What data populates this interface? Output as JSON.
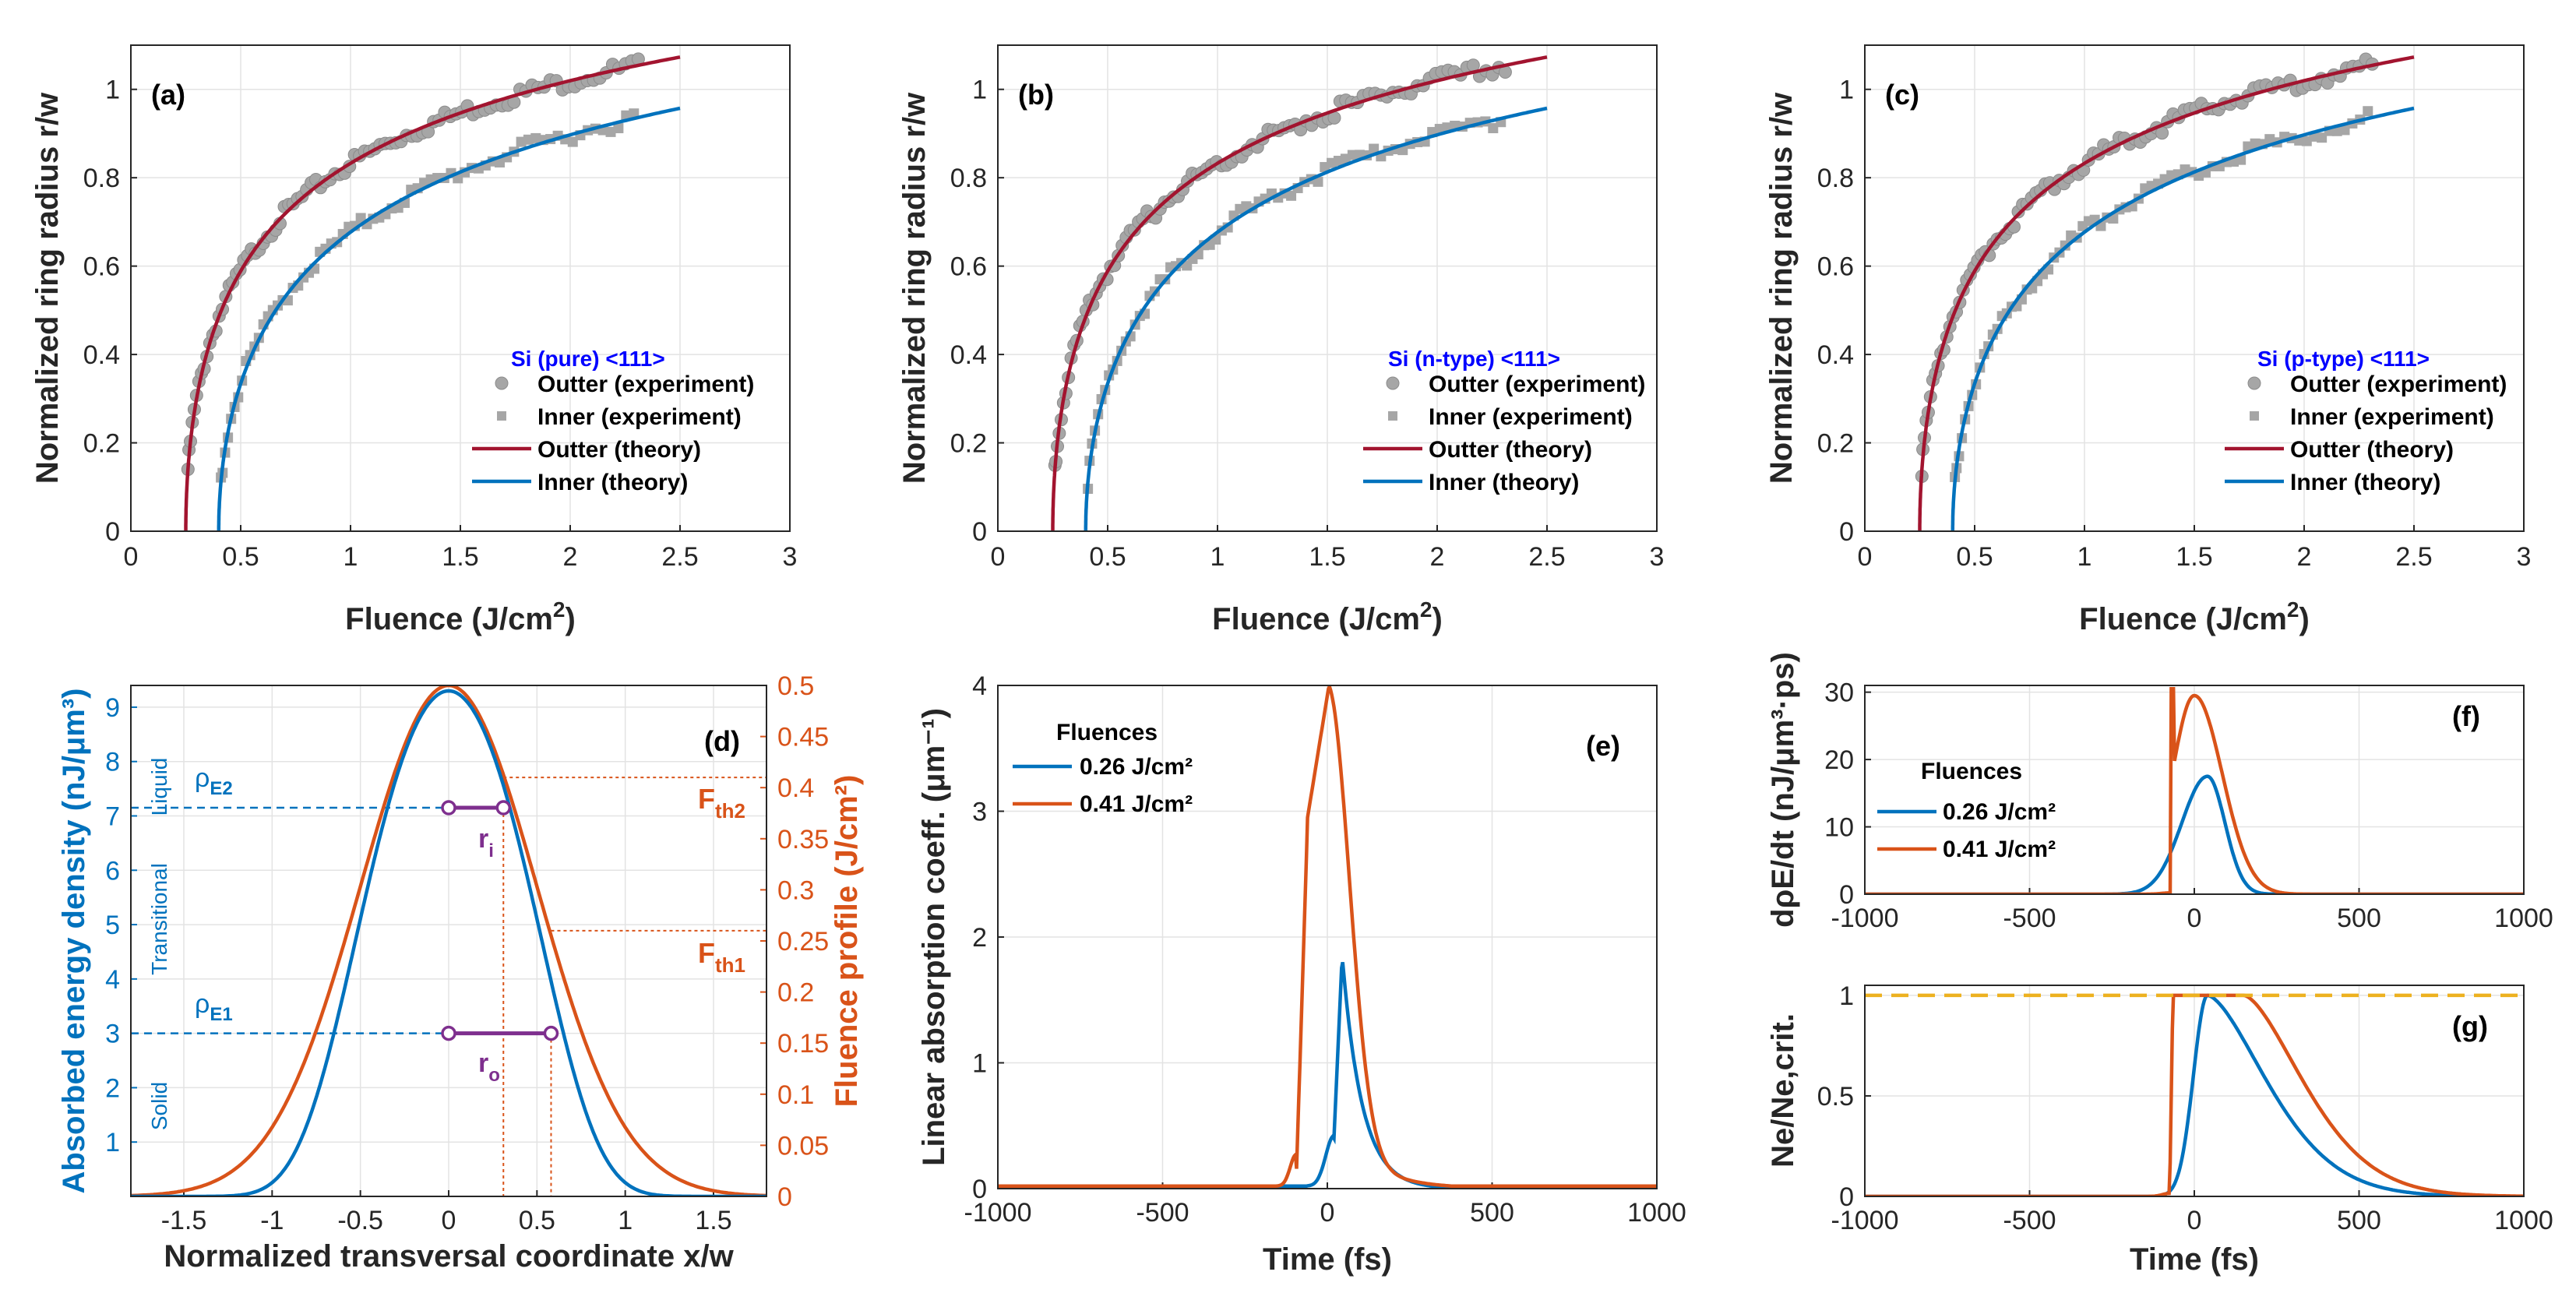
{
  "colors": {
    "outer": "#a2142f",
    "inner": "#0072bd",
    "orange": "#d95319",
    "marker": "#a6a6a6",
    "purple": "#7e2f8e",
    "yellow": "#edb120",
    "material": "#0000ff"
  },
  "chart_data": [
    {
      "id": "a",
      "type": "scatter",
      "panel_label": "(a)",
      "material": "Si (pure) <111>",
      "xlabel": "Fluence (J/cm",
      "xlabel_sup": "2",
      "xlabel_end": ")",
      "ylabel": "Normalized ring radius r/w",
      "xlim": [
        0,
        3
      ],
      "ylim": [
        0,
        1.1
      ],
      "xticks": [
        "0",
        "0.5",
        "1",
        "1.5",
        "2",
        "2.5",
        "3"
      ],
      "yticks": [
        "0",
        "0.2",
        "0.4",
        "0.6",
        "0.8",
        "1"
      ],
      "thresholds": {
        "outer": 0.25,
        "inner": 0.4
      },
      "legend": [
        "Outter (experiment)",
        "Inner (experiment)",
        "Outter (theory)",
        "Inner (theory)"
      ]
    },
    {
      "id": "b",
      "type": "scatter",
      "panel_label": "(b)",
      "material": "Si (n-type) <111>",
      "xlabel": "Fluence (J/cm",
      "xlabel_sup": "2",
      "xlabel_end": ")",
      "ylabel": "Normalized ring radius r/w",
      "xlim": [
        0,
        3
      ],
      "ylim": [
        0,
        1.1
      ],
      "xticks": [
        "0",
        "0.5",
        "1",
        "1.5",
        "2",
        "2.5",
        "3"
      ],
      "yticks": [
        "0",
        "0.2",
        "0.4",
        "0.6",
        "0.8",
        "1"
      ],
      "thresholds": {
        "outer": 0.25,
        "inner": 0.4
      },
      "legend": [
        "Outter (experiment)",
        "Inner (experiment)",
        "Outter (theory)",
        "Inner (theory)"
      ]
    },
    {
      "id": "c",
      "type": "scatter",
      "panel_label": "(c)",
      "material": "Si (p-type) <111>",
      "xlabel": "Fluence (J/cm",
      "xlabel_sup": "2",
      "xlabel_end": ")",
      "ylabel": "Normalized ring radius r/w",
      "xlim": [
        0,
        3
      ],
      "ylim": [
        0,
        1.1
      ],
      "xticks": [
        "0",
        "0.5",
        "1",
        "1.5",
        "2",
        "2.5",
        "3"
      ],
      "yticks": [
        "0",
        "0.2",
        "0.4",
        "0.6",
        "0.8",
        "1"
      ],
      "thresholds": {
        "outer": 0.25,
        "inner": 0.4
      },
      "legend": [
        "Outter (experiment)",
        "Inner (experiment)",
        "Outter (theory)",
        "Inner (theory)"
      ]
    },
    {
      "id": "d",
      "type": "line",
      "panel_label": "(d)",
      "xlabel": "Normalized transversal coordinate x/w",
      "ylabel_left": "Absorbed energy density (nJ/μm³)",
      "ylabel_right": "Fluence profile (J/cm²)",
      "xlim": [
        -1.8,
        1.8
      ],
      "ylim_left": [
        0,
        9.4
      ],
      "ylim_right": [
        0,
        0.5
      ],
      "xticks": [
        "-1.5",
        "-1",
        "-0.5",
        "0",
        "0.5",
        "1",
        "1.5"
      ],
      "yticks_left": [
        "1",
        "2",
        "3",
        "4",
        "5",
        "6",
        "7",
        "8",
        "9"
      ],
      "yticks_right": [
        "0",
        "0.05",
        "0.1",
        "0.15",
        "0.2",
        "0.25",
        "0.3",
        "0.35",
        "0.4",
        "0.45",
        "0.5"
      ],
      "peak_left": 9.3,
      "peak_right": 0.5,
      "rho_E2": 7.15,
      "rho_E1": 3.0,
      "F_th2": 0.41,
      "F_th1": 0.26,
      "r_i": 0.31,
      "r_o": 0.58,
      "labels": {
        "rho_E2": "E2",
        "rho_E1": "E1",
        "F_th2": "th2",
        "F_th1": "th1",
        "r_i": "i",
        "r_o": "o",
        "liquid": "Liquid",
        "transitional": "Transitional",
        "solid": "Solid"
      }
    },
    {
      "id": "e",
      "type": "line",
      "panel_label": "(e)",
      "xlabel": "Time (fs)",
      "ylabel": "Linear absorption coeff. (μm⁻¹)",
      "xlim": [
        -1000,
        1000
      ],
      "ylim": [
        0,
        4
      ],
      "xticks": [
        "-1000",
        "-500",
        "0",
        "500",
        "1000"
      ],
      "yticks": [
        "0",
        "1",
        "2",
        "3",
        "4"
      ],
      "legend_title": "Fluences",
      "series": [
        {
          "name": "0.26 J/cm²",
          "peak": 1.85,
          "peak_time": 45
        },
        {
          "name": "0.41 J/cm²",
          "peak": 4.0,
          "peak_time": 5
        }
      ]
    },
    {
      "id": "f",
      "type": "line",
      "panel_label": "(f)",
      "xlabel": "",
      "ylabel": "dρE/dt (nJ/μm³·ps)",
      "xlim": [
        -1000,
        1000
      ],
      "ylim": [
        0,
        31
      ],
      "xticks": [
        "-1000",
        "-500",
        "0",
        "500",
        "1000"
      ],
      "yticks": [
        "0",
        "10",
        "20",
        "30"
      ],
      "legend_title": "Fluences",
      "series": [
        {
          "name": "0.26 J/cm²",
          "peak": 17.5,
          "peak_time": 40
        },
        {
          "name": "0.41 J/cm²",
          "peak": 29.5,
          "peak_time": 0
        }
      ]
    },
    {
      "id": "g",
      "type": "line",
      "panel_label": "(g)",
      "xlabel": "Time (fs)",
      "ylabel": "Ne/Ne,crit.",
      "xlim": [
        -1000,
        1000
      ],
      "ylim": [
        0,
        1.05
      ],
      "xticks": [
        "-1000",
        "-500",
        "0",
        "500",
        "1000"
      ],
      "yticks": [
        "0",
        "0.5",
        "1"
      ],
      "reference_level": 1.0,
      "series": [
        {
          "name": "0.26 J/cm²",
          "peak": 1.0,
          "peak_time": 40
        },
        {
          "name": "0.41 J/cm²",
          "peak": 1.0,
          "peak_time": 10
        }
      ]
    }
  ]
}
